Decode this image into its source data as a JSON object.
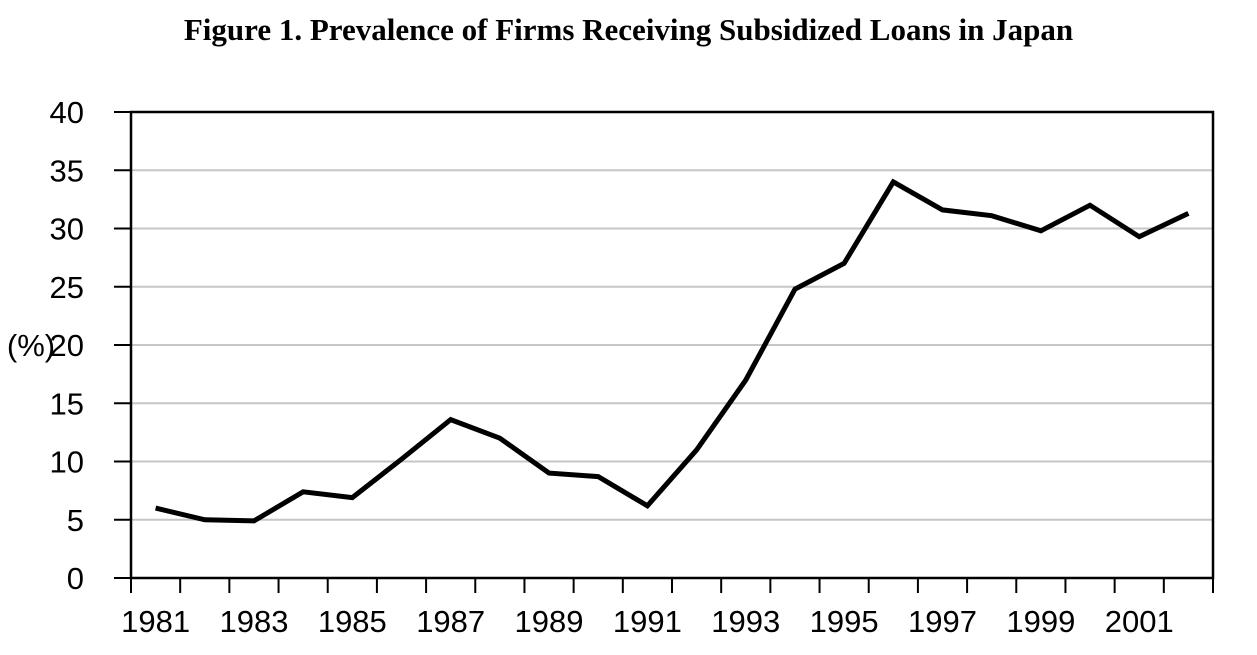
{
  "figure": {
    "title": "Figure 1. Prevalence of Firms Receiving Subsidized Loans in Japan"
  },
  "chart_data": {
    "type": "line",
    "title": "Figure 1. Prevalence of Firms Receiving Subsidized Loans in Japan",
    "ylabel": "(%)",
    "xlabel": "",
    "x": [
      1981,
      1982,
      1983,
      1984,
      1985,
      1986,
      1987,
      1988,
      1989,
      1990,
      1991,
      1992,
      1993,
      1994,
      1995,
      1996,
      1997,
      1998,
      1999,
      2000,
      2001,
      2002
    ],
    "values": [
      6.0,
      5.0,
      4.9,
      7.4,
      6.9,
      10.2,
      13.6,
      12.0,
      9.0,
      8.7,
      6.2,
      11.0,
      17.0,
      24.8,
      27.0,
      34.0,
      31.6,
      31.1,
      29.8,
      32.0,
      29.3,
      31.3
    ],
    "ylim": [
      0,
      40
    ],
    "ytick_step": 5,
    "yticks": [
      0,
      5,
      10,
      15,
      20,
      25,
      30,
      35,
      40
    ],
    "xtick_labels": [
      "1981",
      "1983",
      "1985",
      "1987",
      "1989",
      "1991",
      "1993",
      "1995",
      "1997",
      "1999",
      "2001"
    ],
    "grid": "horizontal",
    "legend": "none",
    "colors": {
      "line": "#000000",
      "grid": "#c6c6c6",
      "frame": "#000000",
      "text": "#000000",
      "background": "#ffffff"
    }
  }
}
